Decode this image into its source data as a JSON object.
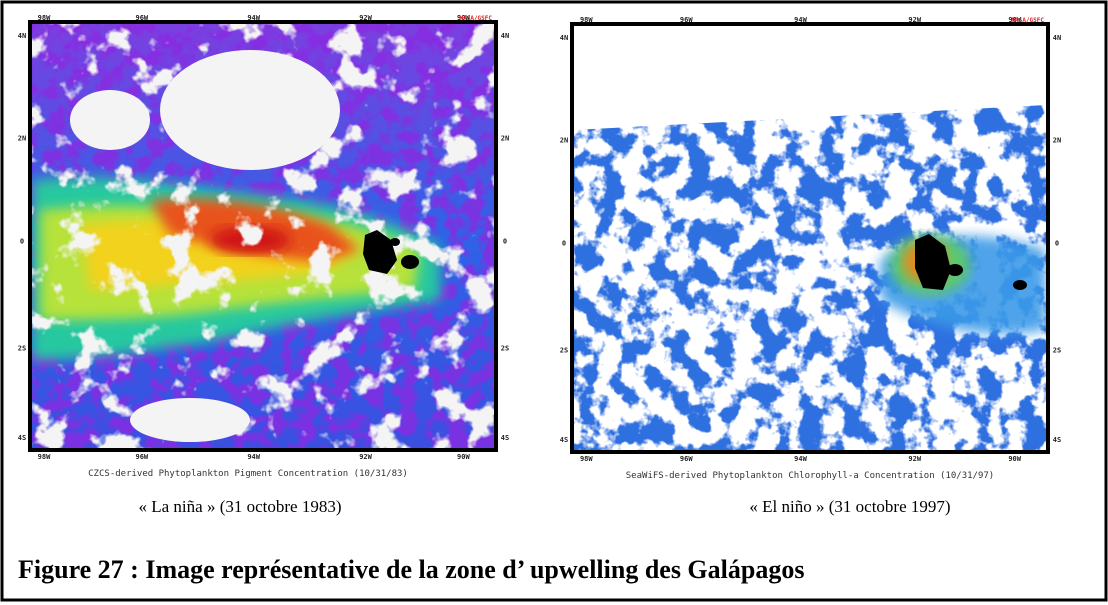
{
  "figure": {
    "caption": "Figure 27 : Image représentative de la zone d’ upwelling des Galápagos"
  },
  "panels": [
    {
      "image_caption": "CZCS-derived Phytoplankton Pigment Concentration (10/31/83)",
      "label": "« La niña » (31 octobre 1983)",
      "credit": "NASA/GSFC",
      "lon_labels": [
        "98W",
        "96W",
        "94W",
        "92W",
        "90W"
      ],
      "lat_labels": [
        "4N",
        "2N",
        "0",
        "2S",
        "4S"
      ]
    },
    {
      "image_caption": "SeaWiFS-derived Phytoplankton Chlorophyll-a Concentration (10/31/97)",
      "label": "« El niño » (31 octobre 1997)",
      "credit": "NASA/GSFC",
      "lon_labels": [
        "98W",
        "96W",
        "94W",
        "92W",
        "90W"
      ],
      "lat_labels": [
        "4N",
        "2N",
        "0",
        "2S",
        "4S"
      ]
    }
  ]
}
